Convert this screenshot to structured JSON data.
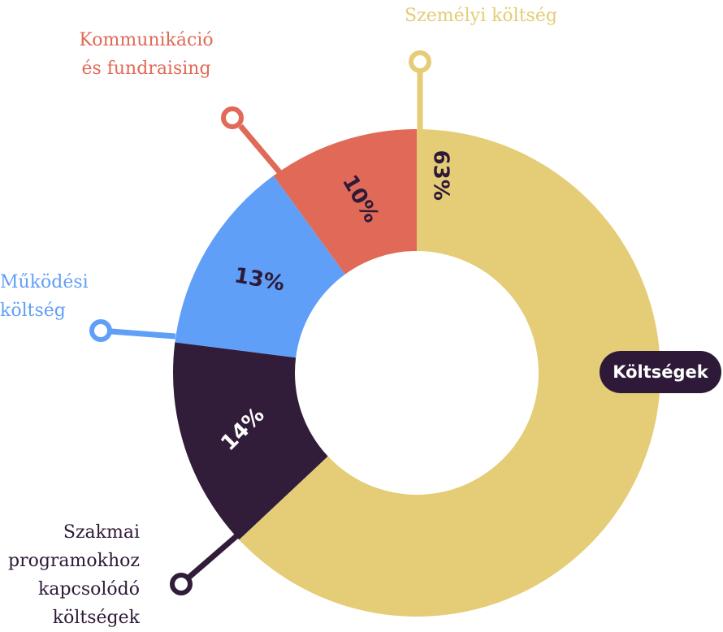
{
  "chart_data": {
    "type": "pie",
    "donut": true,
    "center_label": "Költségek",
    "slices": [
      {
        "label_lines": [
          "Személyi költség"
        ],
        "value": 63,
        "value_label": "63%",
        "color": "#E5CC76",
        "value_text_color": "#2E1A38"
      },
      {
        "label_lines": [
          "Szakmai",
          "programokhoz",
          "kapcsolódó",
          "költségek"
        ],
        "value": 14,
        "value_label": "14%",
        "color": "#311C3A",
        "value_text_color": "#ffffff"
      },
      {
        "label_lines": [
          "Működési",
          "költség"
        ],
        "value": 13,
        "value_label": "13%",
        "color": "#609FF8",
        "value_text_color": "#2E1A38"
      },
      {
        "label_lines": [
          "Kommunikáció",
          "és fundraising"
        ],
        "value": 10,
        "value_label": "10%",
        "color": "#E06A57",
        "value_text_color": "#2E1A38"
      }
    ]
  }
}
